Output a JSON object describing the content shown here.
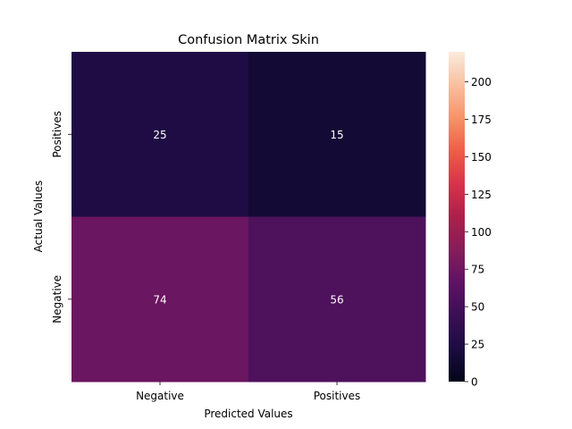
{
  "chart_data": {
    "type": "heatmap",
    "title": "Confusion Matrix Skin",
    "xlabel": "Predicted Values",
    "ylabel": "Actual Values",
    "x_categories": [
      "Negative",
      "Positives"
    ],
    "y_categories": [
      "Positives",
      "Negative"
    ],
    "values": [
      [
        25,
        15
      ],
      [
        74,
        56
      ]
    ],
    "colorbar": {
      "vmin": 0,
      "vmax": 220,
      "ticks": [
        0,
        25,
        50,
        75,
        100,
        125,
        150,
        175,
        200
      ],
      "colormap": "rocket"
    },
    "annotation_color": "#ffffff"
  }
}
